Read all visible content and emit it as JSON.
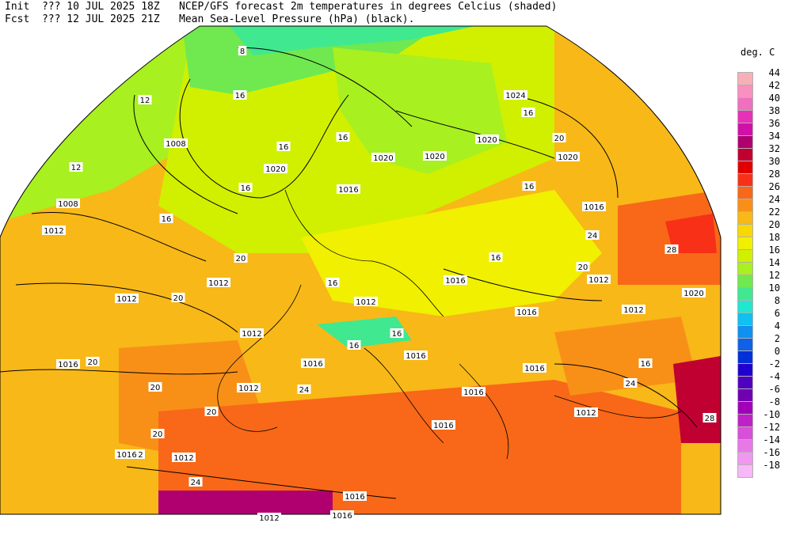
{
  "header": {
    "init_label": "Init",
    "init_time": "??? 10 JUL 2025 18Z",
    "fcst_label": "Fcst",
    "fcst_time": "??? 12 JUL 2025 21Z",
    "line1_desc": "NCEP/GFS forecast 2m temperatures in degrees Celcius (shaded)",
    "line2_desc": "Mean Sea-Level Pressure (hPa) (black)."
  },
  "colorbar": {
    "title": "deg. C",
    "levels": [
      {
        "label": "44",
        "color": "#f8b0b8"
      },
      {
        "label": "42",
        "color": "#f890c0"
      },
      {
        "label": "40",
        "color": "#f070c0"
      },
      {
        "label": "38",
        "color": "#e830b8"
      },
      {
        "label": "36",
        "color": "#d010a8"
      },
      {
        "label": "34",
        "color": "#b00070"
      },
      {
        "label": "32",
        "color": "#c00030"
      },
      {
        "label": "30",
        "color": "#e00000"
      },
      {
        "label": "28",
        "color": "#f83018"
      },
      {
        "label": "26",
        "color": "#f86818"
      },
      {
        "label": "24",
        "color": "#f89018"
      },
      {
        "label": "22",
        "color": "#f8b818"
      },
      {
        "label": "20",
        "color": "#f8d800"
      },
      {
        "label": "18",
        "color": "#f0f000"
      },
      {
        "label": "16",
        "color": "#d0f000"
      },
      {
        "label": "14",
        "color": "#a8f020"
      },
      {
        "label": "12",
        "color": "#70e850"
      },
      {
        "label": "10",
        "color": "#40e890"
      },
      {
        "label": "8",
        "color": "#20e8d0"
      },
      {
        "label": "6",
        "color": "#10c0f0"
      },
      {
        "label": "4",
        "color": "#1090f0"
      },
      {
        "label": "2",
        "color": "#1060e8"
      },
      {
        "label": "0",
        "color": "#0030d8"
      },
      {
        "label": "-2",
        "color": "#2000d0"
      },
      {
        "label": "-4",
        "color": "#5000c0"
      },
      {
        "label": "-6",
        "color": "#7000b0"
      },
      {
        "label": "-8",
        "color": "#a000b8"
      },
      {
        "label": "-10",
        "color": "#c020c8"
      },
      {
        "label": "-12",
        "color": "#d850d8"
      },
      {
        "label": "-14",
        "color": "#e878e8"
      },
      {
        "label": "-16",
        "color": "#f098f0"
      },
      {
        "label": "-18",
        "color": "#f8b8f8"
      }
    ]
  },
  "isobar_labels": [
    "1008",
    "1008",
    "1012",
    "1012",
    "1012",
    "1012",
    "1012",
    "1012",
    "1012",
    "1012",
    "1012",
    "1012",
    "1012",
    "1012",
    "1016",
    "1016",
    "1016",
    "1016",
    "1016",
    "1016",
    "1016",
    "1016",
    "1016",
    "1016",
    "1016",
    "1016",
    "1016",
    "1020",
    "1020",
    "1020",
    "1020",
    "1020",
    "1020",
    "1024"
  ],
  "temp_labels": [
    "8",
    "12",
    "12",
    "16",
    "16",
    "16",
    "16",
    "16",
    "16",
    "16",
    "16",
    "16",
    "16",
    "16",
    "16",
    "20",
    "20",
    "20",
    "20",
    "20",
    "20",
    "20",
    "20",
    "24",
    "24",
    "24",
    "24",
    "28",
    "28"
  ]
}
